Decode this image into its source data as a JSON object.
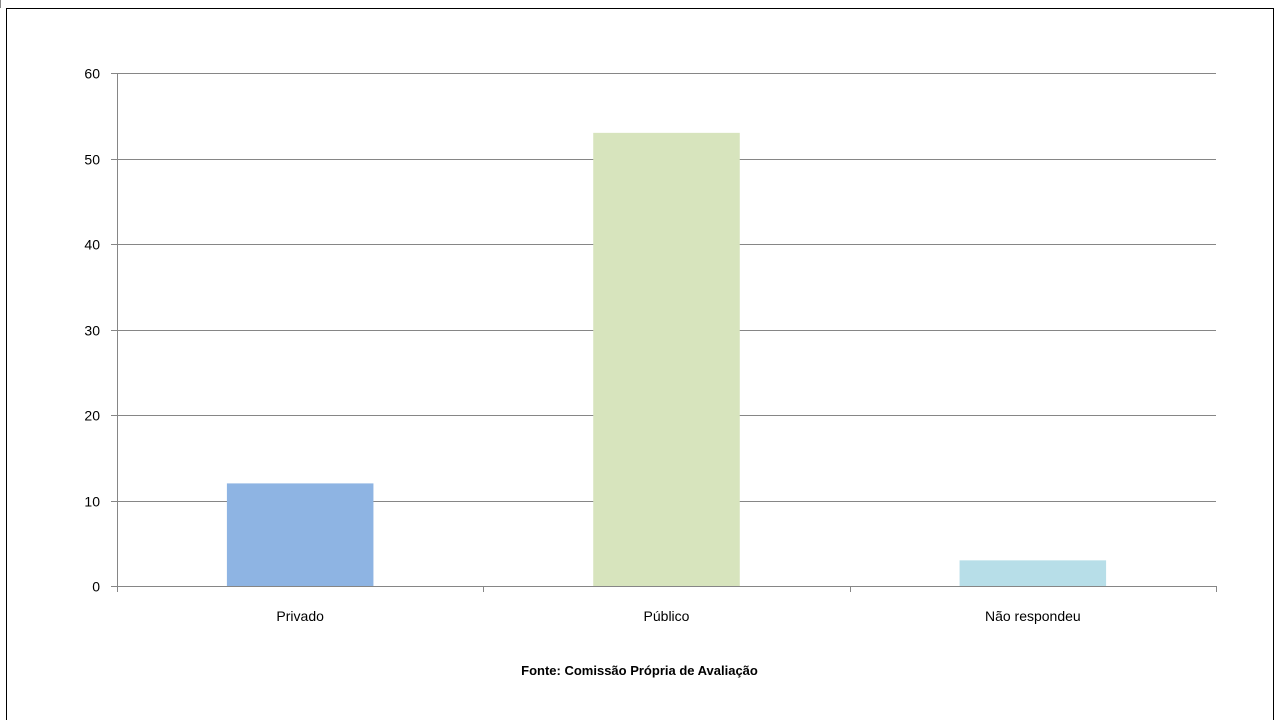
{
  "chart_data": {
    "type": "bar",
    "categories": [
      "Privado",
      "Público",
      "Não respondeu"
    ],
    "values": [
      12,
      53,
      3
    ],
    "colors": [
      "#8eb4e3",
      "#d7e4bd",
      "#b7dee8"
    ],
    "ylim": [
      0,
      60
    ],
    "yticks": [
      0,
      10,
      20,
      30,
      40,
      50,
      60
    ],
    "ytick_labels": [
      "0",
      "10",
      "20",
      "30",
      "40",
      "50",
      "60"
    ],
    "grid": true,
    "legend": "none",
    "title": "",
    "xlabel": "",
    "ylabel": ""
  },
  "source_note": "Fonte: Comissão Própria de Avaliação"
}
